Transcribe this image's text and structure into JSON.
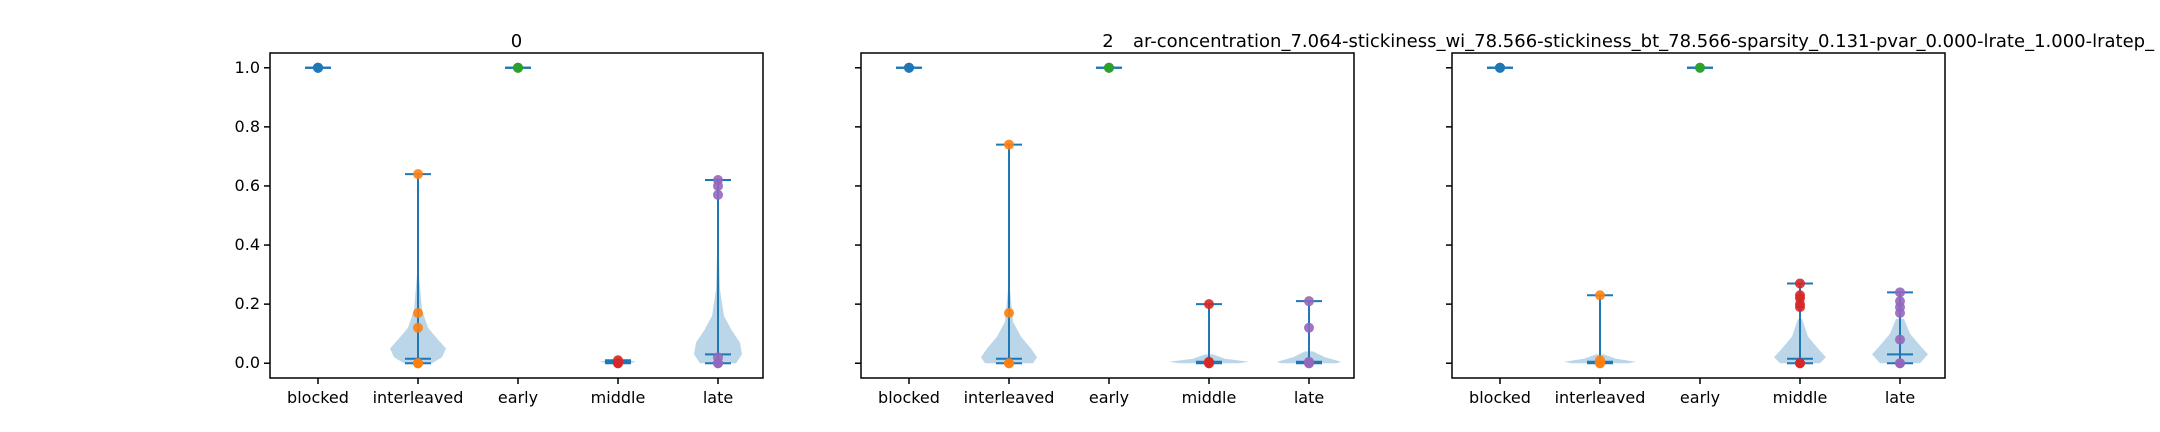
{
  "figure": {
    "title_left": "2",
    "title_right": "ar-concentration_7.064-stickiness_wi_78.566-stickiness_bt_78.566-sparsity_0.131-pvar_0.000-lrate_1.000-lratep_"
  },
  "chart_data": [
    {
      "type": "violin",
      "title": "0",
      "categories": [
        "blocked",
        "interleaved",
        "early",
        "middle",
        "late"
      ],
      "ylim": [
        -0.05,
        1.05
      ],
      "yticks": [
        "0.0",
        "0.2",
        "0.4",
        "0.6",
        "0.8",
        "1.0"
      ],
      "grid": false,
      "series": [
        {
          "category": "blocked",
          "color": "#1f77b4",
          "min": 1.0,
          "max": 1.0,
          "median": 1.0,
          "points": [
            1.0,
            1.0,
            1.0,
            1.0
          ],
          "density": []
        },
        {
          "category": "interleaved",
          "color": "#ff7f0e",
          "min": 0.0,
          "max": 0.64,
          "median": 0.015,
          "points": [
            0.0,
            0.0,
            0.0,
            0.12,
            0.17,
            0.64
          ],
          "density": [
            [
              0.0,
              0.07
            ],
            [
              0.02,
              0.12
            ],
            [
              0.05,
              0.14
            ],
            [
              0.08,
              0.1
            ],
            [
              0.12,
              0.05
            ],
            [
              0.18,
              0.02
            ],
            [
              0.3,
              0.005
            ]
          ]
        },
        {
          "category": "early",
          "color": "#2ca02c",
          "min": 1.0,
          "max": 1.0,
          "median": 1.0,
          "points": [
            1.0,
            1.0,
            1.0
          ],
          "density": []
        },
        {
          "category": "middle",
          "color": "#d62728",
          "min": 0.0,
          "max": 0.01,
          "median": 0.005,
          "points": [
            0.0,
            0.0,
            0.01
          ],
          "density": [
            [
              0.0,
              0.06
            ],
            [
              0.005,
              0.09
            ],
            [
              0.01,
              0.06
            ]
          ]
        },
        {
          "category": "late",
          "color": "#9467bd",
          "min": 0.0,
          "max": 0.62,
          "median": 0.03,
          "points": [
            0.0,
            0.0,
            0.02,
            0.57,
            0.6,
            0.62
          ],
          "density": [
            [
              0.0,
              0.09
            ],
            [
              0.03,
              0.12
            ],
            [
              0.07,
              0.11
            ],
            [
              0.11,
              0.07
            ],
            [
              0.16,
              0.03
            ],
            [
              0.25,
              0.01
            ],
            [
              0.4,
              0.004
            ]
          ]
        }
      ]
    },
    {
      "type": "violin",
      "title": "",
      "categories": [
        "blocked",
        "interleaved",
        "early",
        "middle",
        "late"
      ],
      "ylim": [
        -0.05,
        1.05
      ],
      "yticks": [],
      "grid": false,
      "series": [
        {
          "category": "blocked",
          "color": "#1f77b4",
          "min": 1.0,
          "max": 1.0,
          "median": 1.0,
          "points": [
            1.0,
            1.0,
            1.0
          ],
          "density": []
        },
        {
          "category": "interleaved",
          "color": "#ff7f0e",
          "min": 0.0,
          "max": 0.74,
          "median": 0.015,
          "points": [
            0.0,
            0.0,
            0.17,
            0.74
          ],
          "density": [
            [
              0.0,
              0.12
            ],
            [
              0.02,
              0.14
            ],
            [
              0.05,
              0.11
            ],
            [
              0.09,
              0.06
            ],
            [
              0.14,
              0.02
            ],
            [
              0.25,
              0.005
            ]
          ]
        },
        {
          "category": "early",
          "color": "#2ca02c",
          "min": 1.0,
          "max": 1.0,
          "median": 1.0,
          "points": [
            1.0,
            1.0,
            1.0
          ],
          "density": []
        },
        {
          "category": "middle",
          "color": "#d62728",
          "min": 0.0,
          "max": 0.2,
          "median": 0.005,
          "points": [
            0.0,
            0.0,
            0.005,
            0.2
          ],
          "density": [
            [
              0.0,
              0.15
            ],
            [
              0.005,
              0.2
            ],
            [
              0.015,
              0.08
            ],
            [
              0.03,
              0.02
            ]
          ]
        },
        {
          "category": "late",
          "color": "#9467bd",
          "min": 0.0,
          "max": 0.21,
          "median": 0.005,
          "points": [
            0.0,
            0.0,
            0.005,
            0.12,
            0.21
          ],
          "density": [
            [
              0.0,
              0.14
            ],
            [
              0.005,
              0.16
            ],
            [
              0.02,
              0.08
            ],
            [
              0.04,
              0.02
            ]
          ]
        }
      ]
    },
    {
      "type": "violin",
      "title": "",
      "categories": [
        "blocked",
        "interleaved",
        "early",
        "middle",
        "late"
      ],
      "ylim": [
        -0.05,
        1.05
      ],
      "yticks": [],
      "grid": false,
      "series": [
        {
          "category": "blocked",
          "color": "#1f77b4",
          "min": 1.0,
          "max": 1.0,
          "median": 1.0,
          "points": [
            1.0,
            1.0,
            1.0
          ],
          "density": []
        },
        {
          "category": "interleaved",
          "color": "#ff7f0e",
          "min": 0.0,
          "max": 0.23,
          "median": 0.005,
          "points": [
            0.0,
            0.0,
            0.01,
            0.23
          ],
          "density": [
            [
              0.0,
              0.14
            ],
            [
              0.005,
              0.18
            ],
            [
              0.015,
              0.08
            ],
            [
              0.03,
              0.02
            ]
          ]
        },
        {
          "category": "early",
          "color": "#2ca02c",
          "min": 1.0,
          "max": 1.0,
          "median": 1.0,
          "points": [
            1.0,
            1.0
          ],
          "density": []
        },
        {
          "category": "middle",
          "color": "#d62728",
          "min": 0.0,
          "max": 0.27,
          "median": 0.015,
          "points": [
            0.0,
            0.0,
            0.19,
            0.2,
            0.22,
            0.23,
            0.27
          ],
          "density": [
            [
              0.0,
              0.1
            ],
            [
              0.02,
              0.13
            ],
            [
              0.05,
              0.09
            ],
            [
              0.09,
              0.04
            ],
            [
              0.15,
              0.01
            ]
          ]
        },
        {
          "category": "late",
          "color": "#9467bd",
          "min": 0.0,
          "max": 0.24,
          "median": 0.03,
          "points": [
            0.0,
            0.0,
            0.08,
            0.17,
            0.19,
            0.21,
            0.24
          ],
          "density": [
            [
              0.0,
              0.1
            ],
            [
              0.03,
              0.14
            ],
            [
              0.06,
              0.1
            ],
            [
              0.1,
              0.05
            ],
            [
              0.15,
              0.02
            ]
          ]
        }
      ]
    }
  ]
}
